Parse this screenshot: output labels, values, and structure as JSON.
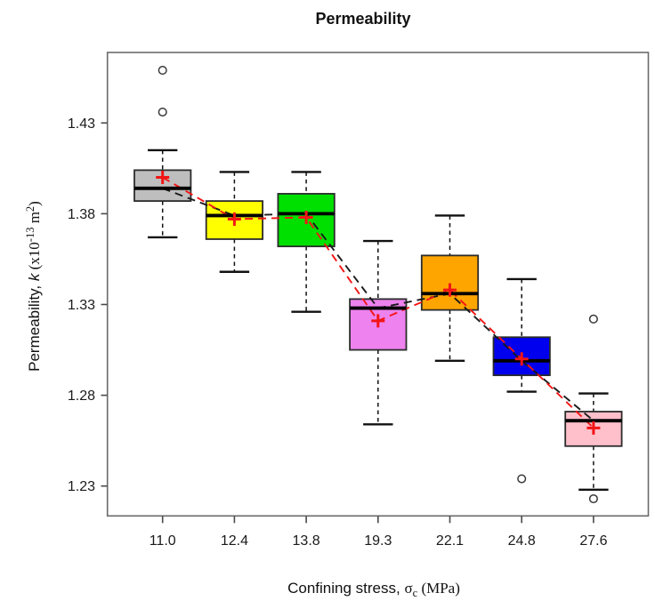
{
  "chart_data": {
    "type": "boxplot",
    "title": "Permeability",
    "xlabel": "Confining stress, σc (MPa)",
    "ylabel": "Permeability, k (x10-13 m2)",
    "xlabel_parts": [
      {
        "t": "Confining stress, ",
        "f": "sans",
        "pos": "normal"
      },
      {
        "t": "σ",
        "f": "serif",
        "pos": "normal"
      },
      {
        "t": "c",
        "f": "serif",
        "pos": "sub"
      },
      {
        "t": " (MPa)",
        "f": "serif",
        "pos": "normal"
      }
    ],
    "ylabel_parts": [
      {
        "t": "Permeability, ",
        "f": "sans",
        "pos": "normal"
      },
      {
        "t": "k",
        "f": "sans-italic",
        "pos": "normal"
      },
      {
        "t": " (x10",
        "f": "serif",
        "pos": "normal"
      },
      {
        "t": "-13",
        "f": "serif",
        "pos": "sup"
      },
      {
        "t": " m",
        "f": "serif",
        "pos": "normal"
      },
      {
        "t": "2",
        "f": "serif",
        "pos": "sup"
      },
      {
        "t": ")",
        "f": "serif",
        "pos": "normal"
      }
    ],
    "categories": [
      "11.0",
      "12.4",
      "13.8",
      "19.3",
      "22.1",
      "24.8",
      "27.6"
    ],
    "yticks": [
      "1.23",
      "1.28",
      "1.33",
      "1.38",
      "1.43"
    ],
    "ylim": [
      1.214,
      1.469
    ],
    "grid": false,
    "legend": "none",
    "boxes": [
      {
        "x": "11.0",
        "color": "#BEBEBE",
        "whisker_low": 1.367,
        "q1": 1.387,
        "median": 1.394,
        "q3": 1.404,
        "whisker_high": 1.415,
        "mean": 1.4,
        "outliers": [
          1.459,
          1.436
        ]
      },
      {
        "x": "12.4",
        "color": "#FFFF00",
        "whisker_low": 1.348,
        "q1": 1.366,
        "median": 1.379,
        "q3": 1.387,
        "whisker_high": 1.403,
        "mean": 1.377,
        "outliers": []
      },
      {
        "x": "13.8",
        "color": "#00E000",
        "whisker_low": 1.326,
        "q1": 1.362,
        "median": 1.38,
        "q3": 1.391,
        "whisker_high": 1.403,
        "mean": 1.378,
        "outliers": []
      },
      {
        "x": "19.3",
        "color": "#EE82EE",
        "whisker_low": 1.264,
        "q1": 1.305,
        "median": 1.328,
        "q3": 1.333,
        "whisker_high": 1.365,
        "mean": 1.321,
        "outliers": []
      },
      {
        "x": "22.1",
        "color": "#FFA500",
        "whisker_low": 1.299,
        "q1": 1.327,
        "median": 1.336,
        "q3": 1.357,
        "whisker_high": 1.379,
        "mean": 1.338,
        "outliers": []
      },
      {
        "x": "24.8",
        "color": "#0000EE",
        "whisker_low": 1.282,
        "q1": 1.291,
        "median": 1.299,
        "q3": 1.312,
        "whisker_high": 1.344,
        "mean": 1.3,
        "outliers": [
          1.234
        ]
      },
      {
        "x": "27.6",
        "color": "#FFC0CB",
        "whisker_low": 1.228,
        "q1": 1.252,
        "median": 1.266,
        "q3": 1.271,
        "whisker_high": 1.281,
        "mean": 1.262,
        "outliers": [
          1.322,
          1.223
        ]
      }
    ],
    "mean_marker": "+",
    "colors": {
      "mean": "#F31515",
      "median": "#000000",
      "median_connector": "#1a1a1a",
      "mean_connector": "#F31515",
      "box_border": "#2b2b2b",
      "plot_border": "#6a6a6a",
      "axis_text": "#1a1a1a"
    },
    "connector_style": "dashed"
  }
}
